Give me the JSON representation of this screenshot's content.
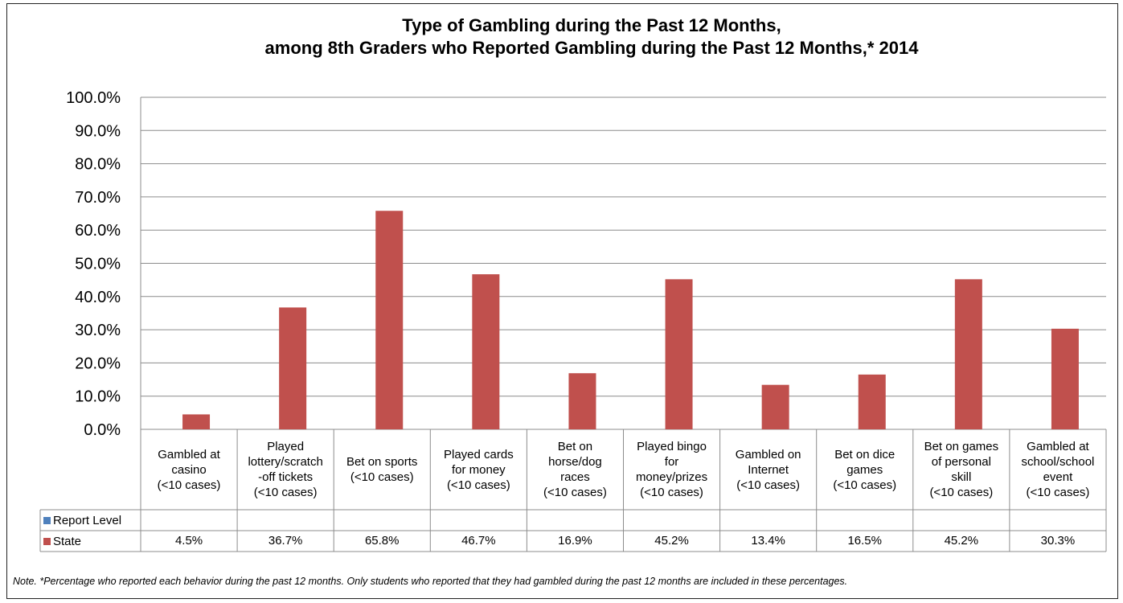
{
  "chart_data": {
    "type": "bar",
    "title_line1": "Type of Gambling during the Past 12 Months,",
    "title_line2": "among 8th Graders who Reported Gambling during the Past 12 Months,* 2014",
    "categories": [
      "Gambled at\ncasino\n(<10 cases)",
      "Played\nlottery/scratch\n-off tickets\n(<10 cases)",
      "Bet on sports\n(<10 cases)",
      "Played cards\nfor money\n(<10 cases)",
      "Bet on\nhorse/dog\nraces\n(<10 cases)",
      "Played bingo\nfor\nmoney/prizes\n(<10 cases)",
      "Gambled on\nInternet\n(<10 cases)",
      "Bet on dice\ngames\n(<10 cases)",
      "Bet on games\nof personal\nskill\n(<10 cases)",
      "Gambled at\nschool/school\nevent\n(<10 cases)"
    ],
    "series": [
      {
        "name": "Report Level",
        "color": "#4f81bd",
        "values": [
          null,
          null,
          null,
          null,
          null,
          null,
          null,
          null,
          null,
          null
        ],
        "labels": [
          "",
          "",
          "",
          "",
          "",
          "",
          "",
          "",
          "",
          ""
        ]
      },
      {
        "name": "State",
        "color": "#c0504d",
        "values": [
          4.5,
          36.7,
          65.8,
          46.7,
          16.9,
          45.2,
          13.4,
          16.5,
          45.2,
          30.3
        ],
        "labels": [
          "4.5%",
          "36.7%",
          "65.8%",
          "46.7%",
          "16.9%",
          "45.2%",
          "13.4%",
          "16.5%",
          "45.2%",
          "30.3%"
        ]
      }
    ],
    "yticks": [
      "0.0%",
      "10.0%",
      "20.0%",
      "30.0%",
      "40.0%",
      "50.0%",
      "60.0%",
      "70.0%",
      "80.0%",
      "90.0%",
      "100.0%"
    ],
    "ylim": [
      0,
      100
    ],
    "grid": true,
    "legend_placement": "data-table"
  },
  "note": "Note. *Percentage who reported each behavior during the past 12 months. Only students who reported that they had gambled during the past 12 months are included in these percentages."
}
